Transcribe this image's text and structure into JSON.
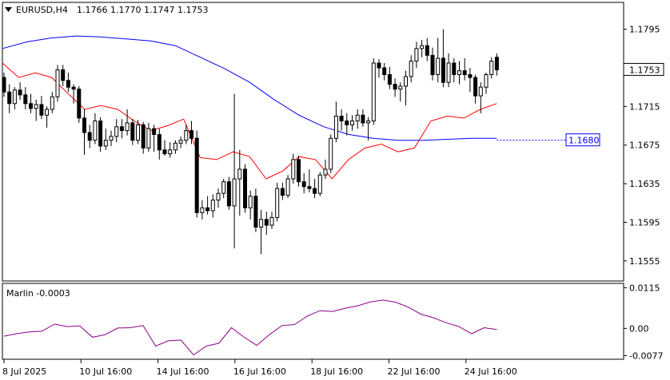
{
  "header": {
    "symbol": "EURUSD,H4",
    "ohlc": "1.1766 1.1770 1.1747 1.1753",
    "menu_icon": "triangle-down-icon"
  },
  "chart_data": [
    {
      "type": "candlestick",
      "title": "EURUSD,H4",
      "ylim": [
        1.1535,
        1.1822
      ],
      "y_ticks": [
        "1.1795",
        "1.1755",
        "1.1715",
        "1.1675",
        "1.1635",
        "1.1595",
        "1.1555"
      ],
      "x_ticks": [
        "8 Jul 2025",
        "10 Jul 16:00",
        "14 Jul 16:00",
        "16 Jul 16:00",
        "18 Jul 16:00",
        "22 Jul 16:00",
        "24 Jul 16:00"
      ],
      "current_price": "1.1753",
      "level_label": "1.1680",
      "candles": [
        [
          1.1745,
          1.175,
          1.1725,
          1.173
        ],
        [
          1.173,
          1.1738,
          1.1708,
          1.1718
        ],
        [
          1.1718,
          1.1735,
          1.1712,
          1.1732
        ],
        [
          1.1732,
          1.174,
          1.1722,
          1.1727
        ],
        [
          1.1727,
          1.1735,
          1.1712,
          1.1718
        ],
        [
          1.1718,
          1.1728,
          1.1708,
          1.1713
        ],
        [
          1.1713,
          1.1722,
          1.17,
          1.1717
        ],
        [
          1.1717,
          1.1726,
          1.1702,
          1.1706
        ],
        [
          1.1706,
          1.1715,
          1.1693,
          1.1712
        ],
        [
          1.1712,
          1.173,
          1.1708,
          1.1725
        ],
        [
          1.1725,
          1.1758,
          1.172,
          1.1753
        ],
        [
          1.1753,
          1.1758,
          1.1736,
          1.1742
        ],
        [
          1.1742,
          1.175,
          1.173,
          1.1735
        ],
        [
          1.1735,
          1.1738,
          1.1718,
          1.1733
        ],
        [
          1.1733,
          1.1736,
          1.1698,
          1.1703
        ],
        [
          1.1703,
          1.1712,
          1.1665,
          1.1688
        ],
        [
          1.1688,
          1.1696,
          1.1672,
          1.168
        ],
        [
          1.168,
          1.1708,
          1.1676,
          1.17
        ],
        [
          1.17,
          1.1704,
          1.1668,
          1.1674
        ],
        [
          1.1674,
          1.1692,
          1.167,
          1.168
        ],
        [
          1.168,
          1.169,
          1.1674,
          1.1684
        ],
        [
          1.1684,
          1.1702,
          1.1678,
          1.1694
        ],
        [
          1.1694,
          1.1702,
          1.1682,
          1.169
        ],
        [
          1.169,
          1.1712,
          1.1685,
          1.1698
        ],
        [
          1.1698,
          1.1702,
          1.1675,
          1.168
        ],
        [
          1.168,
          1.1701,
          1.1676,
          1.1696
        ],
        [
          1.1696,
          1.1699,
          1.1666,
          1.1672
        ],
        [
          1.1672,
          1.1698,
          1.1668,
          1.1692
        ],
        [
          1.1692,
          1.1696,
          1.1668,
          1.1686
        ],
        [
          1.1686,
          1.1692,
          1.166,
          1.167
        ],
        [
          1.167,
          1.168,
          1.1664,
          1.1666
        ],
        [
          1.1666,
          1.1678,
          1.1662,
          1.167
        ],
        [
          1.167,
          1.168,
          1.1666,
          1.1677
        ],
        [
          1.1677,
          1.1684,
          1.1672,
          1.168
        ],
        [
          1.168,
          1.1696,
          1.1676,
          1.169
        ],
        [
          1.169,
          1.17,
          1.1676,
          1.1682
        ],
        [
          1.1682,
          1.169,
          1.16,
          1.1605
        ],
        [
          1.1605,
          1.1618,
          1.1598,
          1.161
        ],
        [
          1.161,
          1.1622,
          1.1603,
          1.1607
        ],
        [
          1.1607,
          1.1624,
          1.16,
          1.1618
        ],
        [
          1.1618,
          1.163,
          1.161,
          1.1625
        ],
        [
          1.1625,
          1.164,
          1.162,
          1.1637
        ],
        [
          1.1637,
          1.1642,
          1.1608,
          1.1612
        ],
        [
          1.1612,
          1.1728,
          1.1568,
          1.164
        ],
        [
          1.164,
          1.167,
          1.1602,
          1.165
        ],
        [
          1.165,
          1.1655,
          1.1605,
          1.161
        ],
        [
          1.161,
          1.1628,
          1.1598,
          1.1622
        ],
        [
          1.1622,
          1.163,
          1.1585,
          1.159
        ],
        [
          1.159,
          1.1608,
          1.1562,
          1.1598
        ],
        [
          1.1598,
          1.1606,
          1.1582,
          1.1592
        ],
        [
          1.1592,
          1.1606,
          1.1588,
          1.16
        ],
        [
          1.16,
          1.1636,
          1.1596,
          1.163
        ],
        [
          1.163,
          1.1636,
          1.1618,
          1.1623
        ],
        [
          1.1623,
          1.1644,
          1.162,
          1.164
        ],
        [
          1.164,
          1.1666,
          1.1635,
          1.166
        ],
        [
          1.166,
          1.1664,
          1.1632,
          1.1637
        ],
        [
          1.1637,
          1.1646,
          1.1625,
          1.1632
        ],
        [
          1.1632,
          1.165,
          1.1626,
          1.163
        ],
        [
          1.163,
          1.164,
          1.162,
          1.1625
        ],
        [
          1.1625,
          1.1647,
          1.1622,
          1.1644
        ],
        [
          1.1644,
          1.166,
          1.164,
          1.165
        ],
        [
          1.165,
          1.1686,
          1.1646,
          1.1682
        ],
        [
          1.1682,
          1.172,
          1.1678,
          1.1705
        ],
        [
          1.1705,
          1.1712,
          1.169,
          1.17
        ],
        [
          1.17,
          1.1708,
          1.1685,
          1.1696
        ],
        [
          1.1696,
          1.1706,
          1.169,
          1.17
        ],
        [
          1.17,
          1.1712,
          1.1692,
          1.1706
        ],
        [
          1.1706,
          1.1712,
          1.1694,
          1.1698
        ],
        [
          1.1698,
          1.1704,
          1.168,
          1.17
        ],
        [
          1.17,
          1.1765,
          1.1696,
          1.176
        ],
        [
          1.176,
          1.1764,
          1.1745,
          1.1755
        ],
        [
          1.1755,
          1.176,
          1.1742,
          1.1748
        ],
        [
          1.1748,
          1.1756,
          1.1733,
          1.1738
        ],
        [
          1.1738,
          1.1744,
          1.1725,
          1.1733
        ],
        [
          1.1733,
          1.174,
          1.172,
          1.1736
        ],
        [
          1.1736,
          1.1752,
          1.1716,
          1.1746
        ],
        [
          1.1746,
          1.1768,
          1.174,
          1.1762
        ],
        [
          1.1762,
          1.1782,
          1.1755,
          1.1775
        ],
        [
          1.1775,
          1.1784,
          1.1766,
          1.1778
        ],
        [
          1.1778,
          1.1786,
          1.1762,
          1.1768
        ],
        [
          1.1768,
          1.1776,
          1.1742,
          1.1748
        ],
        [
          1.1748,
          1.1786,
          1.174,
          1.1765
        ],
        [
          1.1765,
          1.1795,
          1.1735,
          1.174
        ],
        [
          1.174,
          1.177,
          1.1735,
          1.176
        ],
        [
          1.176,
          1.1765,
          1.174,
          1.1748
        ],
        [
          1.1748,
          1.1762,
          1.1738,
          1.1752
        ],
        [
          1.1752,
          1.1765,
          1.1742,
          1.1748
        ],
        [
          1.1748,
          1.1755,
          1.173,
          1.1745
        ],
        [
          1.1745,
          1.1748,
          1.1718,
          1.1726
        ],
        [
          1.1726,
          1.174,
          1.1708,
          1.1735
        ],
        [
          1.1735,
          1.175,
          1.1728,
          1.1748
        ],
        [
          1.1748,
          1.1766,
          1.1744,
          1.1762
        ],
        [
          1.1766,
          1.177,
          1.1747,
          1.1753
        ]
      ],
      "series": [
        {
          "name": "",
          "color": "#0000ff",
          "values": [
            1.1775,
            1.1782,
            1.1786,
            1.1788,
            1.1787,
            1.1785,
            1.1783,
            1.1778,
            1.1766,
            1.1754,
            1.174,
            1.1722,
            1.1706,
            1.1694,
            1.1686,
            1.1682,
            1.168,
            1.168,
            1.1681,
            1.1682,
            1.1682
          ]
        },
        {
          "name": "",
          "color": "#ff0000",
          "values": [
            1.176,
            1.1745,
            1.175,
            1.1745,
            1.1728,
            1.1712,
            1.1716,
            1.1712,
            1.17,
            1.169,
            1.1695,
            1.1702,
            1.1662,
            1.166,
            1.1668,
            1.1663,
            1.164,
            1.1648,
            1.1663,
            1.166,
            1.164,
            1.166,
            1.1672,
            1.1676,
            1.1668,
            1.1672,
            1.17,
            1.1705,
            1.1703,
            1.1712,
            1.1718
          ]
        }
      ]
    },
    {
      "type": "line",
      "title": "Marlin -0.0003",
      "ylim": [
        -0.0085,
        0.0125
      ],
      "y_ticks": [
        "0.0115",
        "0.00",
        "-0.0077"
      ],
      "series": [
        {
          "name": "",
          "color": "#8b008b",
          "values": [
            -0.0022,
            -0.0015,
            -0.001,
            -0.0008,
            0.0012,
            0.0005,
            0.0007,
            -0.0025,
            -0.0018,
            0.0001,
            0.0002,
            0.0008,
            -0.005,
            -0.0035,
            -0.0033,
            -0.0075,
            -0.005,
            -0.0042,
            0.0002,
            -0.0025,
            -0.0048,
            -0.0018,
            0.0008,
            0.0011,
            0.0035,
            0.005,
            0.0048,
            0.0057,
            0.0064,
            0.0075,
            0.008,
            0.0074,
            0.006,
            0.004,
            0.003,
            0.0016,
            0.0005,
            -0.0015,
            0.0002,
            -0.0003
          ]
        }
      ]
    }
  ]
}
